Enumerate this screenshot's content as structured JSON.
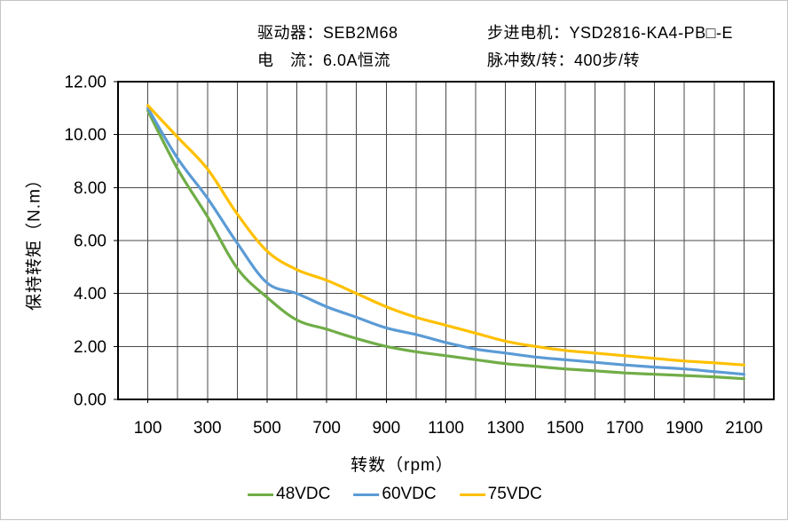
{
  "header": {
    "driver": "驱动器：SEB2M68",
    "current": "电　流：6.0A恒流",
    "motor": "步进电机：YSD2816-KA4-PB□-E",
    "pulses": "脉冲数/转：400步/转"
  },
  "chart_data": {
    "type": "line",
    "title": "",
    "xlabel": "转数（rpm）",
    "ylabel": "保持转矩（N.m）",
    "xlim": [
      0,
      2200
    ],
    "ylim": [
      0,
      12
    ],
    "x_grid_step": 100,
    "y_grid_step": 2,
    "x_tick_labels": [
      "100",
      "300",
      "500",
      "700",
      "900",
      "1100",
      "1300",
      "1500",
      "1700",
      "1900",
      "2100"
    ],
    "x_tick_values": [
      100,
      300,
      500,
      700,
      900,
      1100,
      1300,
      1500,
      1700,
      1900,
      2100
    ],
    "y_tick_labels": [
      "0.00",
      "2.00",
      "4.00",
      "6.00",
      "8.00",
      "10.00",
      "12.00"
    ],
    "y_tick_values": [
      0,
      2,
      4,
      6,
      8,
      10,
      12
    ],
    "grid": true,
    "grid_color": "#4a4a4a",
    "axis_color": "#000000",
    "legend_position": "bottom",
    "x": [
      100,
      200,
      300,
      400,
      500,
      600,
      700,
      800,
      900,
      1000,
      1100,
      1200,
      1300,
      1400,
      1500,
      1600,
      1700,
      1800,
      1900,
      2000,
      2100
    ],
    "series": [
      {
        "name": "48VDC",
        "color": "#70AD47",
        "values": [
          10.9,
          8.7,
          6.9,
          4.95,
          3.85,
          3.0,
          2.65,
          2.3,
          2.0,
          1.8,
          1.65,
          1.5,
          1.35,
          1.25,
          1.15,
          1.08,
          1.0,
          0.95,
          0.9,
          0.85,
          0.78
        ]
      },
      {
        "name": "60VDC",
        "color": "#5B9BD5",
        "values": [
          11.0,
          9.1,
          7.6,
          5.9,
          4.4,
          4.0,
          3.5,
          3.1,
          2.7,
          2.45,
          2.15,
          1.9,
          1.75,
          1.6,
          1.5,
          1.4,
          1.3,
          1.22,
          1.15,
          1.05,
          0.95
        ]
      },
      {
        "name": "75VDC",
        "color": "#FFC000",
        "values": [
          11.1,
          9.9,
          8.7,
          7.0,
          5.6,
          4.9,
          4.5,
          4.0,
          3.5,
          3.1,
          2.8,
          2.5,
          2.2,
          2.0,
          1.85,
          1.75,
          1.65,
          1.55,
          1.45,
          1.38,
          1.3
        ]
      }
    ]
  }
}
